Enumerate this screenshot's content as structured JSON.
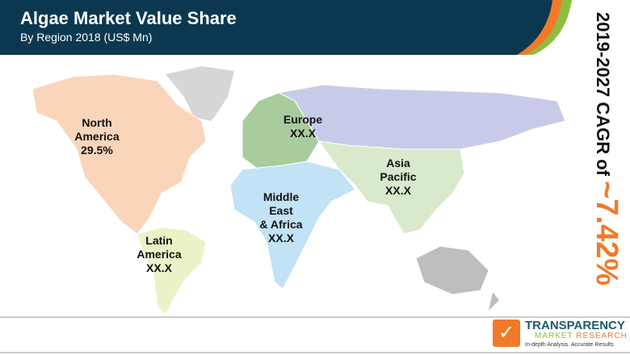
{
  "header": {
    "title": "Algae Market Value Share",
    "subtitle": "By Region 2018 (US$ Mn)"
  },
  "regions": [
    {
      "name": "North America",
      "line1": "North",
      "line2": "America",
      "value": "29.5%",
      "color": "#fad5ba"
    },
    {
      "name": "Europe",
      "line1": "Europe",
      "value": "XX.X",
      "color": "#a9cc9c"
    },
    {
      "name": "Asia Pacific",
      "line1": "Asia",
      "line2": "Pacific",
      "value": "XX.X",
      "color": "#d8eacb"
    },
    {
      "name": "Middle East & Africa",
      "line1": "Middle",
      "line2": "East",
      "line3": "& Africa",
      "value": "XX.X",
      "color": "#c2e2f6"
    },
    {
      "name": "Latin America",
      "line1": "Latin",
      "line2": "America",
      "value": "XX.X",
      "color": "#eaf2c8"
    }
  ],
  "cagr": {
    "label": "2019-2027 CAGR of ",
    "value": "~7.42%"
  },
  "logo": {
    "line1": "TRANSPARENCY",
    "line2a": "MARKET",
    "line2b": "RESEARCH",
    "tagline": "In-depth Analysis. Accurate Results"
  },
  "colors": {
    "header": "#0b3850",
    "accent_orange": "#f07a2a",
    "accent_green": "#8cbf3f"
  }
}
